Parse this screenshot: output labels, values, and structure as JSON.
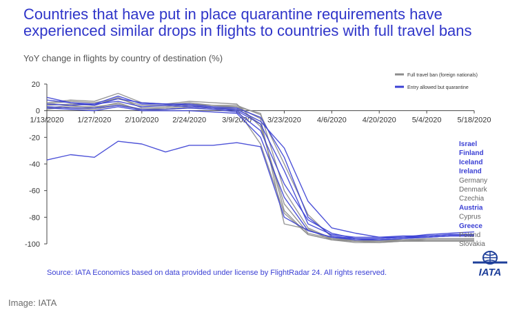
{
  "chart_data": {
    "type": "line",
    "title": "Countries that have put in place quarantine requirements have experienced similar drops in flights to countries with full travel bans",
    "subtitle": "YoY change in flights by country of destination (%)",
    "xlabel": "",
    "ylabel": "",
    "x_ticks": [
      "1/13/2020",
      "1/27/2020",
      "2/10/2020",
      "2/24/2020",
      "3/9/2020",
      "3/23/2020",
      "4/6/2020",
      "4/20/2020",
      "5/4/2020",
      "5/18/2020"
    ],
    "y_ticks": [
      20,
      0,
      -20,
      -40,
      -60,
      -80,
      -100
    ],
    "ylim": [
      -100,
      20
    ],
    "grid": false,
    "legend": {
      "position": "top-right",
      "entries": [
        {
          "label": "Full travel ban (foreign nationals)",
          "color": "#8c8c8c"
        },
        {
          "label": "Entry allowed but quarantine",
          "color": "#3a3fd4"
        }
      ]
    },
    "x": [
      "1/13/2020",
      "1/20/2020",
      "1/27/2020",
      "2/3/2020",
      "2/10/2020",
      "2/17/2020",
      "2/24/2020",
      "3/2/2020",
      "3/9/2020",
      "3/16/2020",
      "3/23/2020",
      "3/30/2020",
      "4/6/2020",
      "4/13/2020",
      "4/20/2020",
      "4/27/2020",
      "5/4/2020",
      "5/11/2020",
      "5/18/2020"
    ],
    "series": [
      {
        "group": "Entry allowed but quarantine",
        "values": [
          -37,
          -33,
          -35,
          -23,
          -25,
          -31,
          -26,
          -26,
          -24,
          -27,
          -80,
          -90,
          -95,
          -96,
          -96,
          -95,
          -94,
          -93,
          -93
        ]
      },
      {
        "group": "Entry allowed but quarantine",
        "values": [
          8,
          6,
          5,
          11,
          5,
          5,
          4,
          2,
          1,
          -8,
          -28,
          -68,
          -88,
          -92,
          -95,
          -95,
          -93,
          -92,
          -91
        ]
      },
      {
        "group": "Entry allowed but quarantine",
        "values": [
          5,
          4,
          5,
          7,
          3,
          4,
          3,
          2,
          0,
          -10,
          -45,
          -85,
          -93,
          -95,
          -95,
          -94,
          -94,
          -93,
          -93
        ]
      },
      {
        "group": "Entry allowed but quarantine",
        "values": [
          3,
          2,
          2,
          4,
          1,
          1,
          2,
          1,
          -1,
          -15,
          -55,
          -82,
          -92,
          -96,
          -97,
          -96,
          -95,
          -94,
          -94
        ]
      },
      {
        "group": "Entry allowed but quarantine",
        "values": [
          10,
          6,
          4,
          9,
          6,
          5,
          5,
          3,
          2,
          -5,
          -35,
          -80,
          -94,
          -96,
          -96,
          -95,
          -95,
          -94,
          -94
        ]
      },
      {
        "group": "Entry allowed but quarantine",
        "values": [
          2,
          1,
          0,
          3,
          0,
          0,
          0,
          -1,
          -2,
          -20,
          -65,
          -90,
          -95,
          -97,
          -97,
          -96,
          -95,
          -94,
          -94
        ]
      },
      {
        "group": "Full travel ban (foreign nationals)",
        "values": [
          5,
          7,
          6,
          9,
          4,
          4,
          6,
          4,
          4,
          -3,
          -40,
          -78,
          -95,
          -97,
          -98,
          -97,
          -97,
          -97,
          -97
        ]
      },
      {
        "group": "Full travel ban (foreign nationals)",
        "values": [
          6,
          8,
          7,
          13,
          6,
          5,
          7,
          6,
          5,
          -12,
          -70,
          -92,
          -96,
          -98,
          -98,
          -98,
          -97,
          -97,
          -97
        ]
      },
      {
        "group": "Full travel ban (foreign nationals)",
        "values": [
          1,
          3,
          3,
          5,
          1,
          2,
          4,
          3,
          3,
          -2,
          -60,
          -88,
          -96,
          -97,
          -97,
          -97,
          -96,
          -96,
          -96
        ]
      },
      {
        "group": "Full travel ban (foreign nationals)",
        "values": [
          4,
          5,
          4,
          10,
          2,
          3,
          5,
          4,
          3,
          -6,
          -85,
          -89,
          -97,
          -98,
          -99,
          -98,
          -98,
          -98,
          -98
        ]
      },
      {
        "group": "Full travel ban (foreign nationals)",
        "values": [
          2,
          4,
          2,
          6,
          0,
          1,
          3,
          2,
          2,
          -10,
          -75,
          -93,
          -97,
          -98,
          -98,
          -98,
          -97,
          -97,
          -97
        ]
      },
      {
        "group": "Full travel ban (foreign nationals)",
        "values": [
          3,
          2,
          1,
          4,
          1,
          1,
          2,
          1,
          1,
          -25,
          -77,
          -93,
          -97,
          -99,
          -99,
          -98,
          -98,
          -98,
          -98
        ]
      }
    ],
    "country_labels": [
      {
        "name": "Israel",
        "group": "Entry allowed but quarantine"
      },
      {
        "name": "Finland",
        "group": "Entry allowed but quarantine"
      },
      {
        "name": "Iceland",
        "group": "Entry allowed but quarantine"
      },
      {
        "name": "Ireland",
        "group": "Entry allowed but quarantine"
      },
      {
        "name": "Germany",
        "group": "Full travel ban (foreign nationals)"
      },
      {
        "name": "Denmark",
        "group": "Full travel ban (foreign nationals)"
      },
      {
        "name": "Czechia",
        "group": "Full travel ban (foreign nationals)"
      },
      {
        "name": "Austria",
        "group": "Entry allowed but quarantine"
      },
      {
        "name": "Cyprus",
        "group": "Full travel ban (foreign nationals)"
      },
      {
        "name": "Greece",
        "group": "Entry allowed but quarantine"
      },
      {
        "name": "Poland",
        "group": "Full travel ban (foreign nationals)"
      },
      {
        "name": "Slovakia",
        "group": "Full travel ban (foreign nationals)"
      }
    ],
    "source": "Source: IATA Economics based on data provided under license by FlightRadar 24. All rights reserved."
  },
  "logo": {
    "text": "IATA",
    "icon": "globe-icon",
    "color": "#1e3f9a"
  },
  "caption": "Image: IATA",
  "colors": {
    "quarantine": "#3a3fd4",
    "ban": "#8c8c8c",
    "title": "#2f35c9"
  }
}
